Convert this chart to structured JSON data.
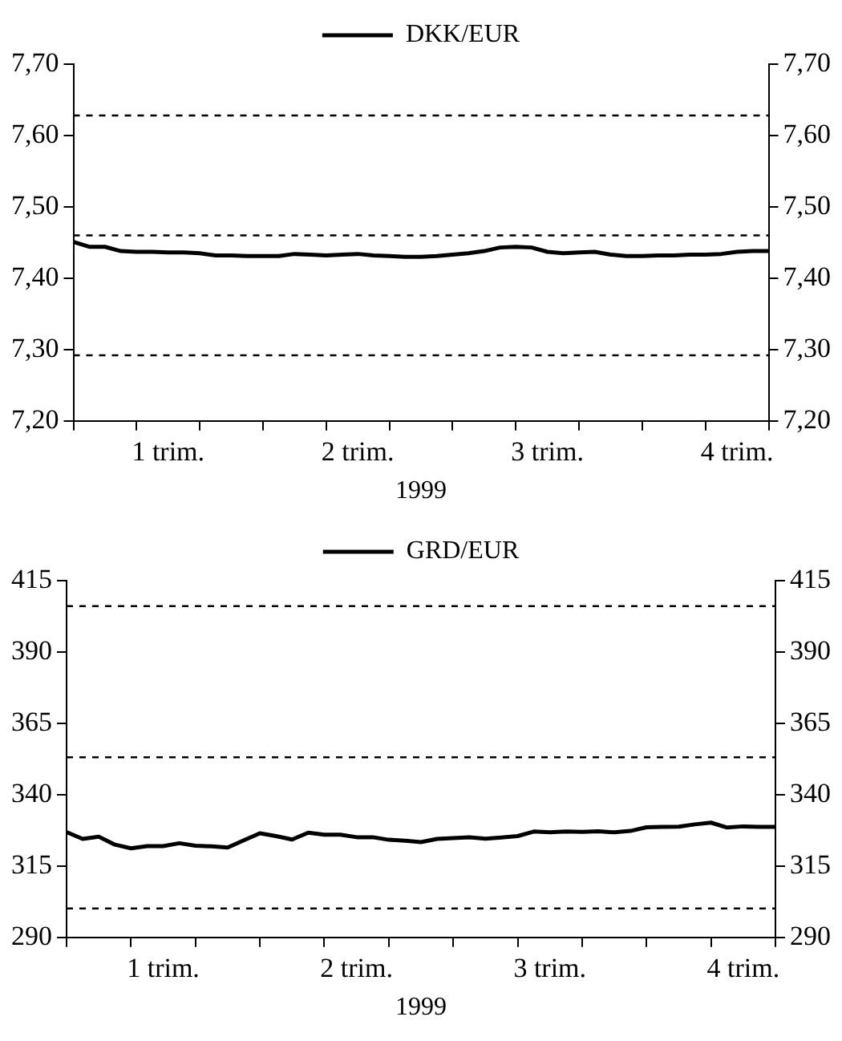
{
  "chart_data": [
    {
      "type": "line",
      "xlabel": "1999",
      "legend": "top",
      "grid": false,
      "marker": "none",
      "categories": [
        null,
        null,
        null,
        null,
        null,
        null,
        "1 trim.",
        null,
        null,
        null,
        null,
        null,
        null,
        null,
        null,
        null,
        null,
        null,
        "2 trim.",
        null,
        null,
        null,
        null,
        null,
        null,
        null,
        null,
        null,
        null,
        null,
        "3 trim.",
        null,
        null,
        null,
        null,
        null,
        null,
        null,
        null,
        null,
        null,
        null,
        "4 trim.",
        null,
        null
      ],
      "ylim": [
        7.2,
        7.7
      ],
      "yticks": [
        {
          "value": 7.2,
          "label": "7,20"
        },
        {
          "value": 7.3,
          "label": "7,30"
        },
        {
          "value": 7.4,
          "label": "7,40"
        },
        {
          "value": 7.5,
          "label": "7,50"
        },
        {
          "value": 7.6,
          "label": "7,60"
        },
        {
          "value": 7.7,
          "label": "7,70"
        }
      ],
      "y2lim": [
        7.2,
        7.7
      ],
      "y2ticks": [
        {
          "value": 7.2,
          "label": "7,20"
        },
        {
          "value": 7.3,
          "label": "7,30"
        },
        {
          "value": 7.4,
          "label": "7,40"
        },
        {
          "value": 7.5,
          "label": "7,50"
        },
        {
          "value": 7.6,
          "label": "7,60"
        },
        {
          "value": 7.7,
          "label": "7,70"
        }
      ],
      "ref_lines": [
        {
          "axis": "y",
          "value": 7.628,
          "line_style": "dashed",
          "color": "#000000"
        },
        {
          "axis": "y",
          "value": 7.46,
          "line_style": "dashed",
          "color": "#000000"
        },
        {
          "axis": "y",
          "value": 7.292,
          "line_style": "dashed",
          "color": "#000000"
        }
      ],
      "series": [
        {
          "name": "DKK/EUR",
          "color": "#000000",
          "line_style": "solid",
          "values": [
            7.451,
            7.444,
            7.444,
            7.438,
            7.437,
            7.437,
            7.436,
            7.436,
            7.435,
            7.432,
            7.432,
            7.431,
            7.431,
            7.431,
            7.434,
            7.433,
            7.432,
            7.433,
            7.434,
            7.432,
            7.431,
            7.43,
            7.43,
            7.431,
            7.433,
            7.435,
            7.438,
            7.443,
            7.444,
            7.443,
            7.437,
            7.435,
            7.436,
            7.437,
            7.433,
            7.431,
            7.431,
            7.432,
            7.432,
            7.433,
            7.433,
            7.434,
            7.437,
            7.438,
            7.438
          ]
        }
      ]
    },
    {
      "type": "line",
      "xlabel": "1999",
      "legend": "top",
      "grid": false,
      "marker": "none",
      "categories": [
        null,
        null,
        null,
        null,
        null,
        null,
        "1 trim.",
        null,
        null,
        null,
        null,
        null,
        null,
        null,
        null,
        null,
        null,
        null,
        "2 trim.",
        null,
        null,
        null,
        null,
        null,
        null,
        null,
        null,
        null,
        null,
        null,
        "3 trim.",
        null,
        null,
        null,
        null,
        null,
        null,
        null,
        null,
        null,
        null,
        null,
        "4 trim.",
        null,
        null
      ],
      "ylim": [
        290,
        415
      ],
      "yticks": [
        290,
        315,
        340,
        365,
        390,
        415
      ],
      "y2lim": [
        290,
        415
      ],
      "y2ticks": [
        290,
        315,
        340,
        365,
        390,
        415
      ],
      "ref_lines": [
        {
          "axis": "y",
          "value": 406.08,
          "line_style": "dashed",
          "color": "#000000"
        },
        {
          "axis": "y",
          "value": 353.11,
          "line_style": "dashed",
          "color": "#000000"
        },
        {
          "axis": "y",
          "value": 300.14,
          "line_style": "dashed",
          "color": "#000000"
        }
      ],
      "series": [
        {
          "name": "GRD/EUR",
          "color": "#000000",
          "line_style": "solid",
          "values": [
            326.9,
            324.5,
            325.3,
            322.5,
            321.2,
            322,
            322,
            323,
            322.1,
            321.9,
            321.5,
            324,
            326.5,
            325.5,
            324.3,
            326.7,
            326,
            326,
            325.1,
            325.1,
            324.2,
            323.9,
            323.4,
            324.5,
            324.8,
            325.1,
            324.6,
            325,
            325.5,
            327.1,
            326.8,
            327.1,
            327,
            327.2,
            326.8,
            327.3,
            328.6,
            328.7,
            328.8,
            329.6,
            330.2,
            328.5,
            328.9,
            328.7,
            328.7
          ]
        }
      ]
    }
  ]
}
